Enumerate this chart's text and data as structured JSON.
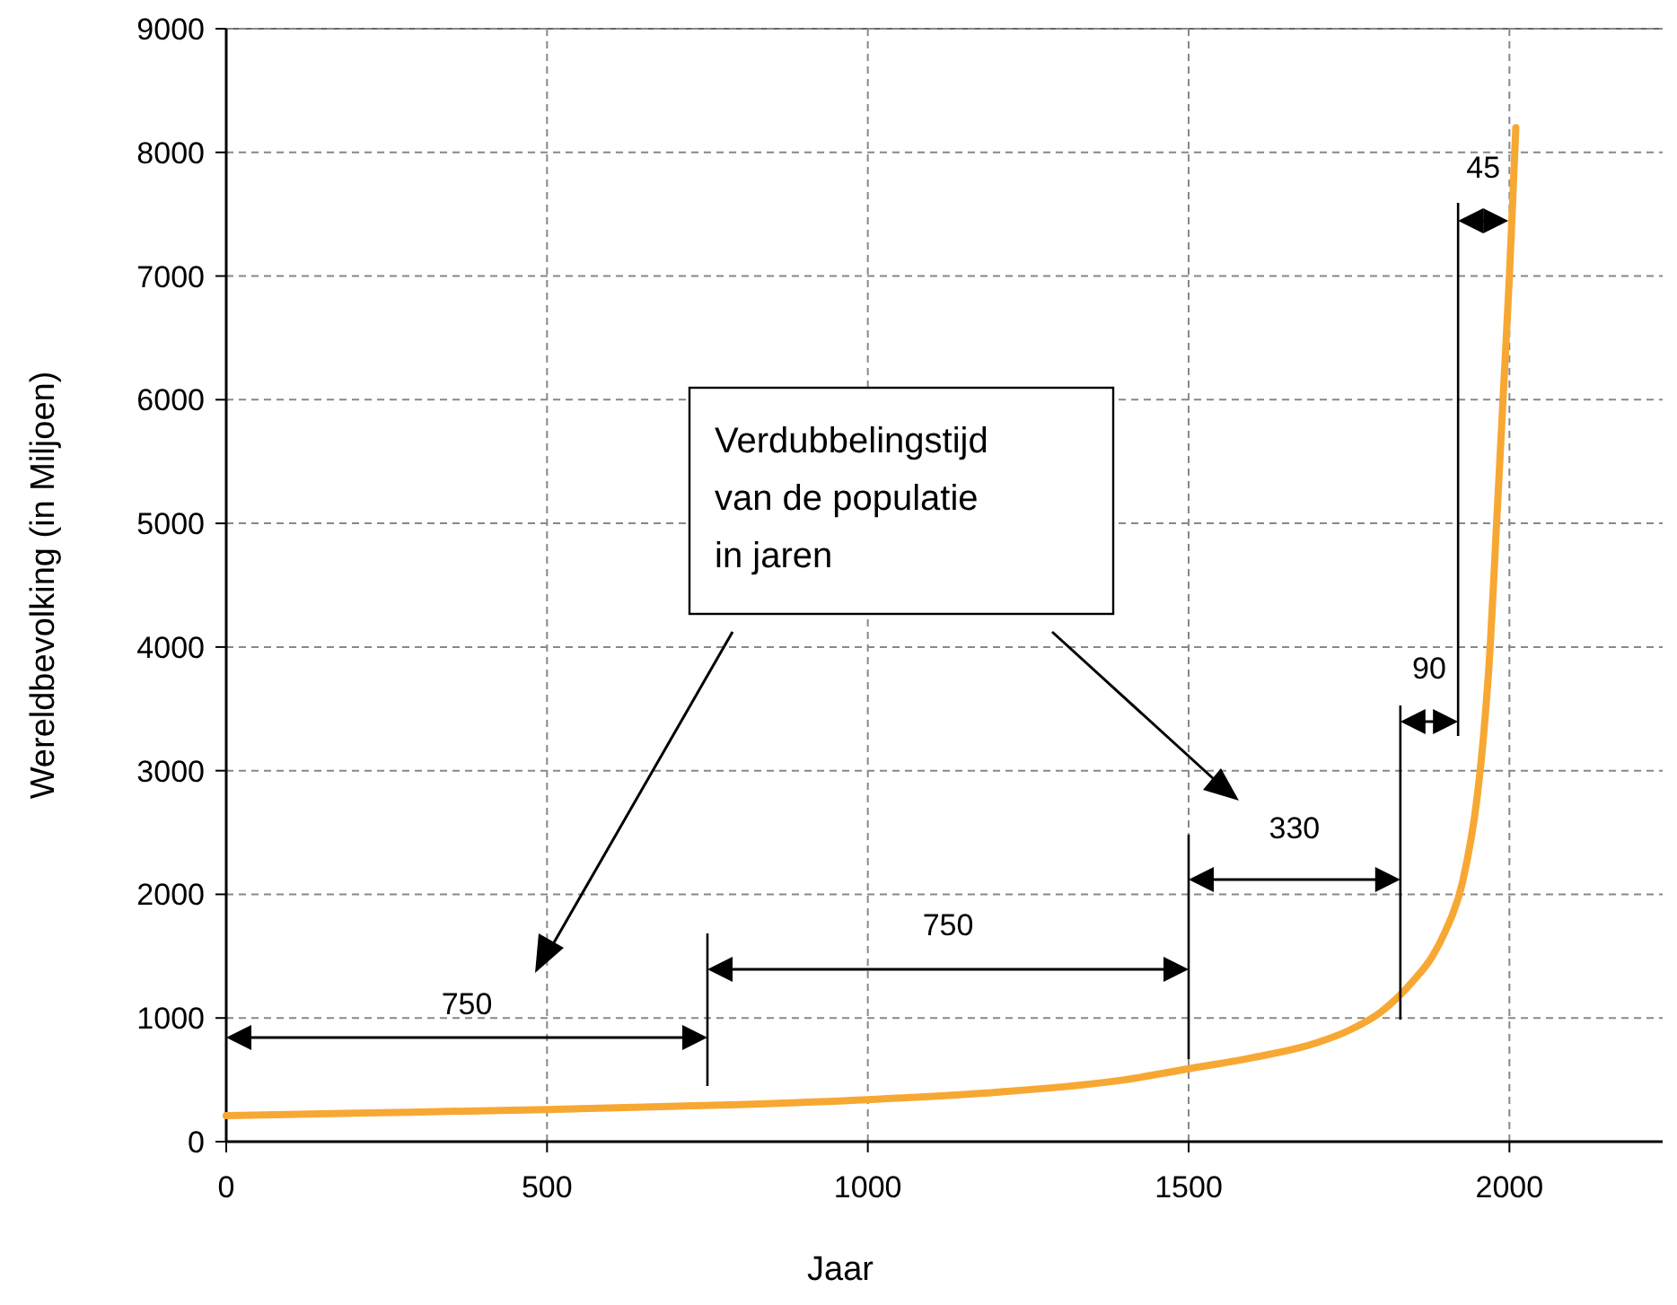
{
  "chart_data": {
    "type": "line",
    "xlabel": "Jaar",
    "ylabel": "Wereldbevolking (in Miljoen)",
    "x": [
      0,
      200,
      500,
      800,
      1000,
      1200,
      1400,
      1500,
      1600,
      1700,
      1750,
      1800,
      1850,
      1880,
      1900,
      1927,
      1950,
      1960,
      1970,
      1980,
      1990,
      2000,
      2010
    ],
    "series": [
      {
        "color": "#f7a833",
        "values": [
          210,
          230,
          260,
          300,
          340,
          400,
          500,
          590,
          680,
          800,
          900,
          1050,
          1300,
          1500,
          1700,
          2100,
          2800,
          3300,
          4000,
          5000,
          6000,
          7000,
          8200
        ]
      }
    ],
    "xlim": [
      0,
      2250
    ],
    "xticks": [
      0,
      500,
      1000,
      1500,
      2000
    ],
    "ylim": [
      0,
      9000
    ],
    "yticks": [
      0,
      1000,
      2000,
      3000,
      4000,
      5000,
      6000,
      7000,
      8000,
      9000
    ],
    "grid": true,
    "line_style": "solid",
    "marker": "none",
    "ref_lines": [
      {
        "axis": "x",
        "value": 750,
        "color": "#000000"
      },
      {
        "axis": "x",
        "value": 1500,
        "color": "#000000"
      },
      {
        "axis": "x",
        "value": 1830,
        "color": "#000000"
      },
      {
        "axis": "x",
        "value": 1920,
        "color": "#000000"
      }
    ],
    "annotations": [
      "750",
      "750",
      "330",
      "90",
      "45",
      "Verdubbelingstijd\nvan de populatie\nin jaren"
    ]
  }
}
